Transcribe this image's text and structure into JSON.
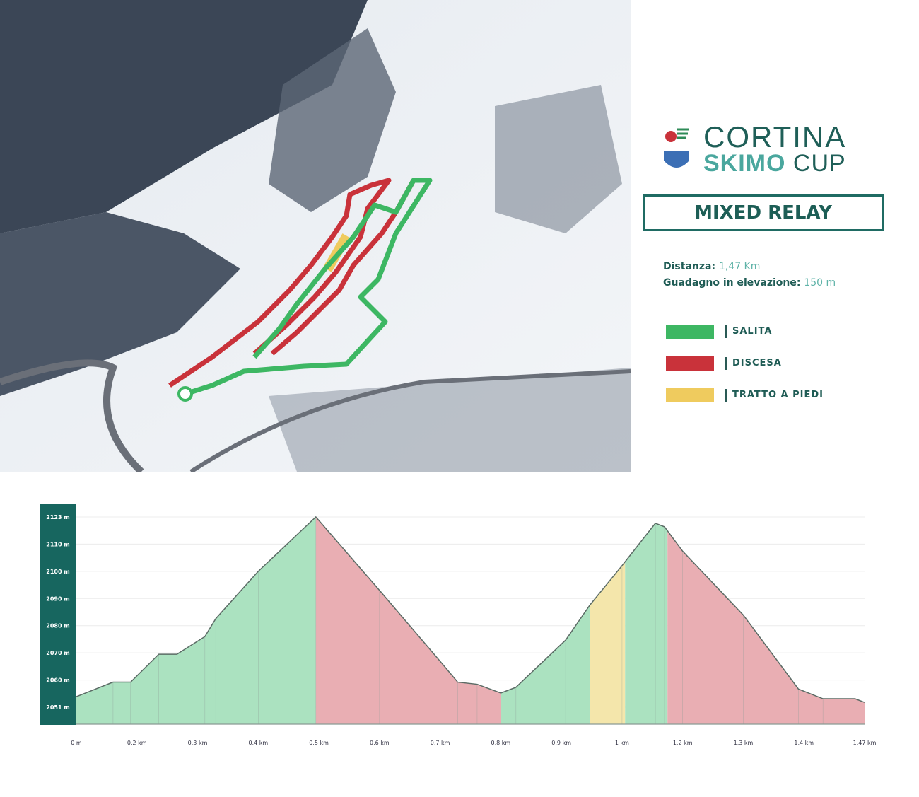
{
  "logo": {
    "line1": "CORTINA",
    "line2a": "SKIMO",
    "line2b": "CUP"
  },
  "title": "MIXED RELAY",
  "info": {
    "distance_label": "Distanza:",
    "distance_value": "1,47 Km",
    "gain_label": "Guadagno in elevazione:",
    "gain_value": "150 m"
  },
  "legend": [
    {
      "label": "SALITA",
      "color": "#3db763"
    },
    {
      "label": "DISCESA",
      "color": "#c9323a"
    },
    {
      "label": "TRATTO A PIEDI",
      "color": "#efcb5e"
    }
  ],
  "colors": {
    "axis_bar": "#17665f",
    "salita_fill": "#abe2c0",
    "discesa_fill": "#e9aeb3",
    "piedi_fill": "#f4e6ab",
    "profile_line": "#5b6b65"
  },
  "chart_data": {
    "type": "area",
    "title": "",
    "xlabel": "",
    "ylabel": "",
    "x_ticks": [
      0,
      0.2,
      0.3,
      0.4,
      0.5,
      0.6,
      0.7,
      0.8,
      0.9,
      1.0,
      1.2,
      1.3,
      1.4,
      1.47
    ],
    "x_tick_labels": [
      "0 m",
      "0,2 km",
      "0,3 km",
      "0,4 km",
      "0,5 km",
      "0,6 km",
      "0,7 km",
      "0,8 km",
      "0,9 km",
      "1 km",
      "1,2 km",
      "1,3 km",
      "1,4 km",
      "1,47 km"
    ],
    "y_ticks": [
      2123,
      2110,
      2100,
      2090,
      2080,
      2070,
      2060,
      2051
    ],
    "y_tick_labels": [
      "2123 m",
      "2110 m",
      "2100 m",
      "2090 m",
      "2080 m",
      "2070 m",
      "2060 m",
      "2051 m"
    ],
    "grid": true,
    "profile": [
      [
        0,
        2054.5
      ],
      [
        0.121,
        2059.3
      ],
      [
        0.179,
        2059.3
      ],
      [
        0.236,
        2069.5
      ],
      [
        0.266,
        2069.5
      ],
      [
        0.312,
        2076
      ],
      [
        0.33,
        2082.6
      ],
      [
        0.4,
        2100
      ],
      [
        0.495,
        2123
      ],
      [
        0.6,
        2093
      ],
      [
        0.7,
        2066.9
      ],
      [
        0.729,
        2059.3
      ],
      [
        0.761,
        2058.6
      ],
      [
        0.8,
        2055.7
      ],
      [
        0.825,
        2057.6
      ],
      [
        0.907,
        2074.7
      ],
      [
        0.947,
        2087.6
      ],
      [
        1.0,
        2102.1
      ],
      [
        1.11,
        2120
      ],
      [
        1.14,
        2118.3
      ],
      [
        1.2,
        2107.4
      ],
      [
        1.3,
        2083.9
      ],
      [
        1.391,
        2057
      ],
      [
        1.422,
        2053.8
      ],
      [
        1.459,
        2053.8
      ],
      [
        1.47,
        2052.6
      ]
    ],
    "segments": [
      {
        "type": "SALITA",
        "from": 0,
        "to": 0.495
      },
      {
        "type": "DISCESA",
        "from": 0.495,
        "to": 0.8
      },
      {
        "type": "SALITA",
        "from": 0.8,
        "to": 0.947
      },
      {
        "type": "TRATTO A PIEDI",
        "from": 0.947,
        "to": 1.01
      },
      {
        "type": "SALITA",
        "from": 1.01,
        "to": 1.15
      },
      {
        "type": "DISCESA",
        "from": 1.15,
        "to": 1.47
      }
    ]
  }
}
